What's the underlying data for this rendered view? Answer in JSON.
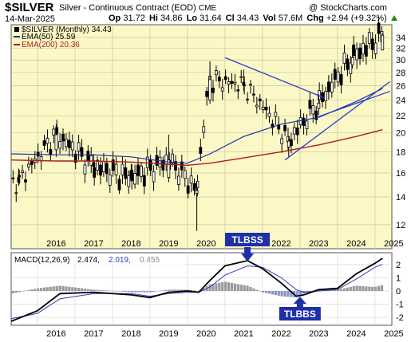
{
  "header": {
    "symbol": "$SILVER",
    "description": "Silver - Continuous Contract (EOD)",
    "exchange": "CME",
    "watermark": "@ StockCharts.com",
    "date": "14-Mar-2025",
    "op_label": "Op",
    "op_value": "31.72",
    "hi_label": "Hi",
    "hi_value": "34.86",
    "lo_label": "Lo",
    "lo_value": "31.64",
    "cl_label": "Cl",
    "cl_value": "34.43",
    "vol_label": "Vol",
    "vol_value": "57.6M",
    "chg_label": "Chg",
    "chg_value": "+2.94 (+9.32%)",
    "chg_arrow": "up-triangle-icon"
  },
  "colors": {
    "plot_bg": "#fbf8c6",
    "price_bar": "#000000",
    "ema50": "#1b2fa8",
    "ema200": "#b01a1a",
    "trendline": "#2c3ad0",
    "macd_line": "#000000",
    "signal_line": "#2f3fb8",
    "hist_pos": "#9a9a9a",
    "hist_neg": "#8a92c8",
    "annotation_bg": "#1e2fa8"
  },
  "legend": {
    "price": "$SILVER (Monthly) 34.43",
    "ema50": "EMA(50) 25.59",
    "ema200": "EMA(200) 20.36"
  },
  "macd_panel": {
    "label_name": "MACD(12,26,9)",
    "macd_value": "2.474,",
    "signal_value": "2.019,",
    "hist_value": "0.455"
  },
  "annotations": [
    {
      "text": "TLBSS",
      "date": 2021.6
    },
    {
      "text": "TLBBS",
      "date": 2023.0
    }
  ],
  "chart_data": [
    {
      "type": "candlestick",
      "title": "Silver - Continuous Contract (EOD)",
      "subtitle": "$SILVER (Monthly)",
      "y_axis": {
        "scale": "log",
        "ticks": [
          12,
          14,
          16,
          18,
          20,
          22,
          24,
          26,
          28,
          30,
          32,
          34
        ],
        "range": [
          10.5,
          36.5
        ],
        "side": "right"
      },
      "x_axis": {
        "ticks": [
          "2016",
          "2017",
          "2018",
          "2019",
          "2020",
          "2021",
          "2022",
          "2023",
          "2024",
          "2025"
        ],
        "range": [
          2015.3,
          2025.45
        ]
      },
      "grid": true,
      "legend_position": "top-left",
      "ohlc_sample": [
        {
          "t": 2015.5,
          "o": 15.6,
          "h": 16.4,
          "l": 14.9,
          "c": 15.2
        },
        {
          "t": 2016.5,
          "o": 18.2,
          "h": 21.0,
          "l": 17.5,
          "c": 19.8
        },
        {
          "t": 2017.5,
          "o": 16.9,
          "h": 17.8,
          "l": 15.8,
          "c": 16.6
        },
        {
          "t": 2018.5,
          "o": 16.2,
          "h": 16.8,
          "l": 15.3,
          "c": 15.6
        },
        {
          "t": 2019.5,
          "o": 15.6,
          "h": 19.8,
          "l": 15.2,
          "c": 17.2
        },
        {
          "t": 2020.25,
          "o": 14.3,
          "h": 15.2,
          "l": 11.6,
          "c": 14.5
        },
        {
          "t": 2020.6,
          "o": 24.0,
          "h": 29.8,
          "l": 23.5,
          "c": 26.9
        },
        {
          "t": 2021.5,
          "o": 26.5,
          "h": 28.4,
          "l": 25.2,
          "c": 26.1
        },
        {
          "t": 2022.7,
          "o": 18.5,
          "h": 19.6,
          "l": 17.5,
          "c": 19.1
        },
        {
          "t": 2023.5,
          "o": 22.9,
          "h": 24.8,
          "l": 22.1,
          "c": 23.6
        },
        {
          "t": 2024.4,
          "o": 29.2,
          "h": 32.5,
          "l": 28.6,
          "c": 30.4
        },
        {
          "t": 2025.2,
          "o": 31.72,
          "h": 34.86,
          "l": 31.64,
          "c": 34.43
        }
      ],
      "series": [
        {
          "name": "EMA(50)",
          "last": 25.59
        },
        {
          "name": "EMA(200)",
          "last": 20.36
        }
      ],
      "ema50_points": [
        [
          2015.3,
          17.8
        ],
        [
          2016.5,
          17.7
        ],
        [
          2017.5,
          17.7
        ],
        [
          2018.5,
          17.5
        ],
        [
          2019.5,
          17.0
        ],
        [
          2020.0,
          16.9
        ],
        [
          2020.6,
          17.8
        ],
        [
          2021.5,
          19.6
        ],
        [
          2022.5,
          21.0
        ],
        [
          2023.5,
          21.8
        ],
        [
          2024.5,
          23.8
        ],
        [
          2025.2,
          25.59
        ]
      ],
      "ema200_points": [
        [
          2015.3,
          17.2
        ],
        [
          2016.5,
          17.1
        ],
        [
          2017.5,
          17.1
        ],
        [
          2018.5,
          17.0
        ],
        [
          2019.5,
          16.8
        ],
        [
          2020.0,
          16.7
        ],
        [
          2020.6,
          16.9
        ],
        [
          2021.5,
          17.4
        ],
        [
          2022.5,
          18.0
        ],
        [
          2023.5,
          18.7
        ],
        [
          2024.5,
          19.6
        ],
        [
          2025.2,
          20.36
        ]
      ],
      "trendlines": [
        {
          "from": [
            2021.0,
            30.4
          ],
          "to": [
            2023.65,
            24.3
          ]
        },
        {
          "from": [
            2022.6,
            17.2
          ],
          "to": [
            2025.4,
            26.6
          ]
        },
        {
          "from": [
            2023.5,
            21.9
          ],
          "to": [
            2025.4,
            25.2
          ]
        }
      ]
    },
    {
      "type": "line",
      "title": "MACD(12,26,9)",
      "y_axis": {
        "ticks": [
          -2,
          -1,
          0,
          1,
          2
        ],
        "range": [
          -2.6,
          2.9
        ],
        "side": "right"
      },
      "series": [
        {
          "name": "MACD",
          "last": 2.474
        },
        {
          "name": "Signal",
          "last": 2.019
        },
        {
          "name": "Histogram",
          "last": 0.455
        }
      ],
      "macd_points": [
        [
          2015.3,
          -2.3
        ],
        [
          2016.0,
          -1.5
        ],
        [
          2016.6,
          -0.2
        ],
        [
          2017.5,
          -0.1
        ],
        [
          2018.5,
          -0.3
        ],
        [
          2019.0,
          -0.5
        ],
        [
          2019.5,
          -0.1
        ],
        [
          2020.0,
          0.0
        ],
        [
          2020.3,
          -0.1
        ],
        [
          2020.6,
          0.8
        ],
        [
          2021.0,
          1.9
        ],
        [
          2021.6,
          2.3
        ],
        [
          2022.0,
          1.7
        ],
        [
          2022.5,
          0.6
        ],
        [
          2022.9,
          -0.4
        ],
        [
          2023.1,
          -0.3
        ],
        [
          2023.5,
          0.1
        ],
        [
          2024.0,
          0.2
        ],
        [
          2024.5,
          1.3
        ],
        [
          2025.0,
          2.1
        ],
        [
          2025.2,
          2.474
        ]
      ],
      "signal_points": [
        [
          2015.3,
          -2.1
        ],
        [
          2016.0,
          -1.7
        ],
        [
          2016.6,
          -0.6
        ],
        [
          2017.5,
          -0.2
        ],
        [
          2018.5,
          -0.2
        ],
        [
          2019.0,
          -0.4
        ],
        [
          2019.5,
          -0.2
        ],
        [
          2020.0,
          -0.1
        ],
        [
          2020.3,
          -0.1
        ],
        [
          2020.6,
          0.3
        ],
        [
          2021.0,
          1.2
        ],
        [
          2021.6,
          1.9
        ],
        [
          2022.0,
          1.8
        ],
        [
          2022.5,
          1.0
        ],
        [
          2022.9,
          0.1
        ],
        [
          2023.1,
          -0.1
        ],
        [
          2023.5,
          0.0
        ],
        [
          2024.0,
          0.1
        ],
        [
          2024.5,
          0.9
        ],
        [
          2025.0,
          1.8
        ],
        [
          2025.2,
          2.019
        ]
      ]
    }
  ]
}
